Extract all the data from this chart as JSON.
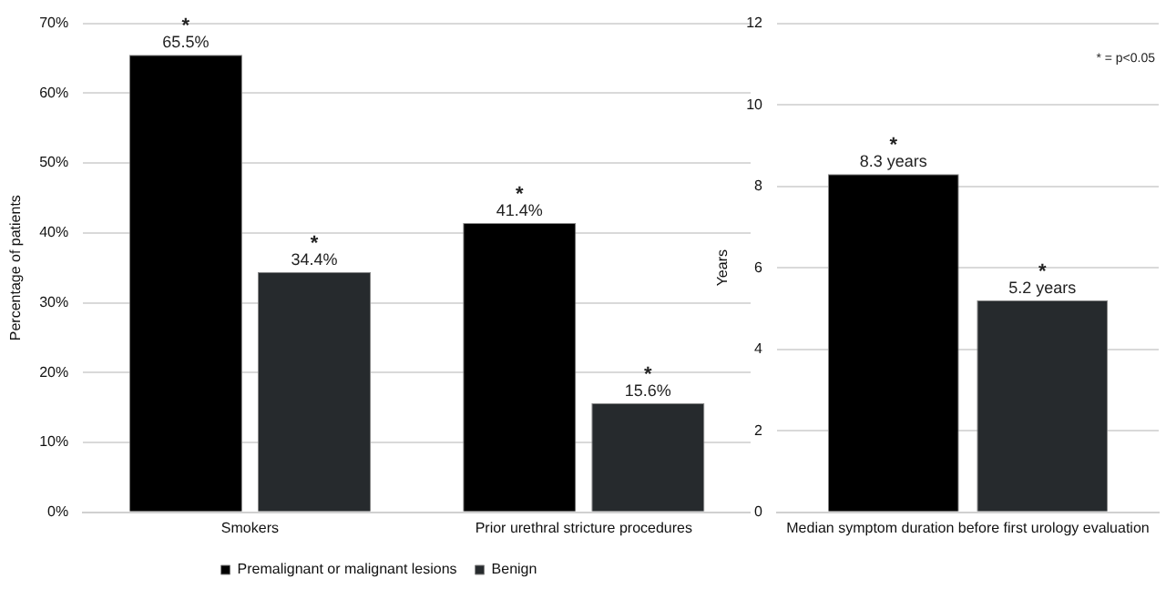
{
  "chart_data": [
    {
      "type": "bar",
      "ylabel": "Percentage of patients",
      "categories": [
        "Smokers",
        "Prior urethral stricture procedures"
      ],
      "series": [
        {
          "name": "Premalignant or malignant lesions",
          "color": "#000000",
          "values": [
            65.5,
            41.4
          ],
          "value_labels": [
            "65.5%",
            "41.4%"
          ]
        },
        {
          "name": "Benign",
          "color": "#262a2d",
          "values": [
            34.4,
            15.6
          ],
          "value_labels": [
            "34.4%",
            "15.6%"
          ]
        }
      ],
      "ylim": [
        0,
        70
      ],
      "yticks": [
        {
          "value": 0,
          "label": "0%"
        },
        {
          "value": 10,
          "label": "10%"
        },
        {
          "value": 20,
          "label": "20%"
        },
        {
          "value": 30,
          "label": "30%"
        },
        {
          "value": 40,
          "label": "40%"
        },
        {
          "value": 50,
          "label": "50%"
        },
        {
          "value": 60,
          "label": "60%"
        },
        {
          "value": 70,
          "label": "70%"
        }
      ],
      "grid": "y",
      "legend": "bottom",
      "annotations": [
        "*",
        "*",
        "*",
        "*"
      ]
    },
    {
      "type": "bar",
      "ylabel": "Years",
      "categories": [
        "Median symptom duration before first urology evaluation"
      ],
      "series": [
        {
          "color": "#000000",
          "values": [
            8.3
          ],
          "value_labels": [
            "8.3 years"
          ]
        },
        {
          "color": "#262a2d",
          "values": [
            5.2
          ],
          "value_labels": [
            "5.2 years"
          ]
        }
      ],
      "ylim": [
        0,
        12
      ],
      "yticks": [
        0,
        2,
        4,
        6,
        8,
        10,
        12
      ],
      "grid": "y",
      "annotations": [
        "*",
        "*",
        "* = p<0.05"
      ]
    }
  ]
}
